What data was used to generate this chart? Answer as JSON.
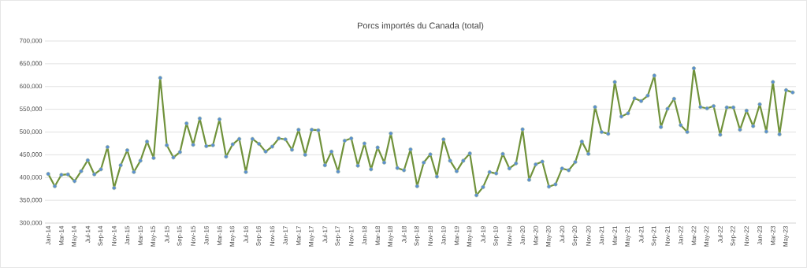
{
  "chart_data": {
    "type": "line",
    "title": "Porcs importés du Canada (total)",
    "categories": [
      "Jan-14",
      null,
      "Mar-14",
      null,
      "May-14",
      null,
      "Jul-14",
      null,
      "Sep-14",
      null,
      "Nov-14",
      null,
      "Jan-15",
      null,
      "Mar-15",
      null,
      "May-15",
      null,
      "Jul-15",
      null,
      "Sep-15",
      null,
      "Nov-15",
      null,
      "Jan-16",
      null,
      "Mar-16",
      null,
      "May-16",
      null,
      "Jul-16",
      null,
      "Sep-16",
      null,
      "Nov-16",
      null,
      "Jan-17",
      null,
      "Mar-17",
      null,
      "May-17",
      null,
      "Jul-17",
      null,
      "Sep-17",
      null,
      "Nov-17",
      null,
      "Jan-18",
      null,
      "Mar-18",
      null,
      "May-18",
      null,
      "Jul-18",
      null,
      "Sep-18",
      null,
      "Nov-18",
      null,
      "Jan-19",
      null,
      "Mar-19",
      null,
      "May-19",
      null,
      "Jul-19",
      null,
      "Sep-19",
      null,
      "Nov-19",
      null,
      "Jan-20",
      null,
      "Mar-20",
      null,
      "May-20",
      null,
      "Jul-20",
      null,
      "Sep-20",
      null,
      "Nov-20",
      null,
      "Jan-21",
      null,
      "Mar-21",
      null,
      "May-21",
      null,
      "Jul-21",
      null,
      "Sep-21",
      null,
      "Nov-21",
      null,
      "Jan-22",
      null,
      "Mar-22",
      null,
      "May-22",
      null,
      "Jul-22",
      null,
      "Sep-22",
      null,
      "Nov-22",
      null,
      "Jan-23",
      null,
      "Mar-23",
      null,
      "May-23",
      null
    ],
    "series": [
      {
        "color": "#70923b",
        "values": [
          408000,
          381000,
          406000,
          407000,
          392000,
          414000,
          438000,
          407000,
          418000,
          467000,
          377000,
          427000,
          460000,
          412000,
          437000,
          479000,
          443000,
          619000,
          471000,
          444000,
          456000,
          519000,
          472000,
          530000,
          469000,
          471000,
          528000,
          446000,
          473000,
          485000,
          412000,
          485000,
          474000,
          457000,
          468000,
          486000,
          484000,
          461000,
          505000,
          450000,
          505000,
          504000,
          427000,
          457000,
          413000,
          481000,
          486000,
          426000,
          475000,
          418000,
          466000,
          433000,
          497000,
          421000,
          416000,
          462000,
          381000,
          433000,
          451000,
          402000,
          484000,
          437000,
          414000,
          437000,
          453000,
          361000,
          379000,
          412000,
          409000,
          452000,
          420000,
          431000,
          506000,
          395000,
          429000,
          435000,
          380000,
          385000,
          420000,
          416000,
          434000,
          479000,
          452000,
          555000,
          500000,
          496000,
          610000,
          534000,
          541000,
          574000,
          568000,
          580000,
          624000,
          511000,
          551000,
          573000,
          515000,
          500000,
          640000,
          555000,
          552000,
          557000,
          494000,
          554000,
          554000,
          505000,
          547000,
          513000,
          561000,
          501000,
          610000,
          495000,
          592000,
          587000
        ]
      }
    ],
    "ylim": [
      300000,
      700000
    ],
    "yticks": [
      {
        "value": 300000,
        "label": "300,000"
      },
      {
        "value": 350000,
        "label": "350,000"
      },
      {
        "value": 400000,
        "label": "400,000"
      },
      {
        "value": 450000,
        "label": "450,000"
      },
      {
        "value": 500000,
        "label": "500,000"
      },
      {
        "value": 550000,
        "label": "550,000"
      },
      {
        "value": 600000,
        "label": "600,000"
      },
      {
        "value": 650000,
        "label": "650,000"
      },
      {
        "value": 700000,
        "label": "700,000"
      }
    ],
    "grid": "y",
    "marker": "circle",
    "line_style": "solid"
  }
}
